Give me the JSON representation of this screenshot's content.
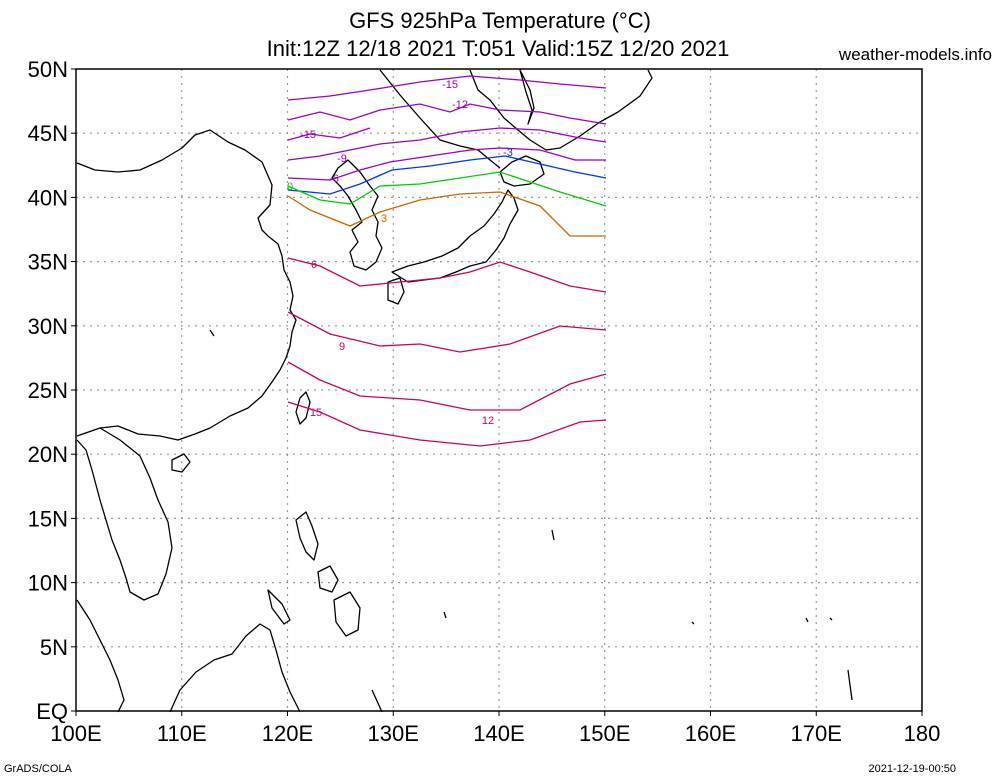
{
  "header": {
    "title_line1": "GFS 925hPa Temperature (°C)",
    "title_line2": "Init:12Z 12/18 2021 T:051 Valid:15Z 12/20 2021",
    "brand": "weather-models.info"
  },
  "footer": {
    "left": "GrADS/COLA",
    "right": "2021-12-19-00:50"
  },
  "map": {
    "lon_range": [
      100,
      180
    ],
    "lat_range": [
      0,
      50
    ],
    "lon_ticks": [
      "100E",
      "110E",
      "120E",
      "130E",
      "140E",
      "150E",
      "160E",
      "170E",
      "180"
    ],
    "lat_ticks": [
      "EQ",
      "5N",
      "10N",
      "15N",
      "20N",
      "25N",
      "30N",
      "35N",
      "40N",
      "45N",
      "50N"
    ],
    "grid": true,
    "data_domain": {
      "lon": [
        120,
        150
      ],
      "lat": [
        22,
        48
      ]
    }
  },
  "contours": [
    {
      "value": "-15",
      "color": "#9900cc"
    },
    {
      "value": "-12",
      "color": "#9900cc"
    },
    {
      "value": "-9",
      "color": "#9900cc"
    },
    {
      "value": "-6",
      "color": "#9900cc"
    },
    {
      "value": "-3",
      "color": "#0033ff"
    },
    {
      "value": "0",
      "color": "#00cc00"
    },
    {
      "value": "3",
      "color": "#cc6600"
    },
    {
      "value": "6",
      "color": "#cc0066"
    },
    {
      "value": "9",
      "color": "#cc0066"
    },
    {
      "value": "12",
      "color": "#cc0066"
    },
    {
      "value": "15",
      "color": "#cc0066"
    }
  ]
}
